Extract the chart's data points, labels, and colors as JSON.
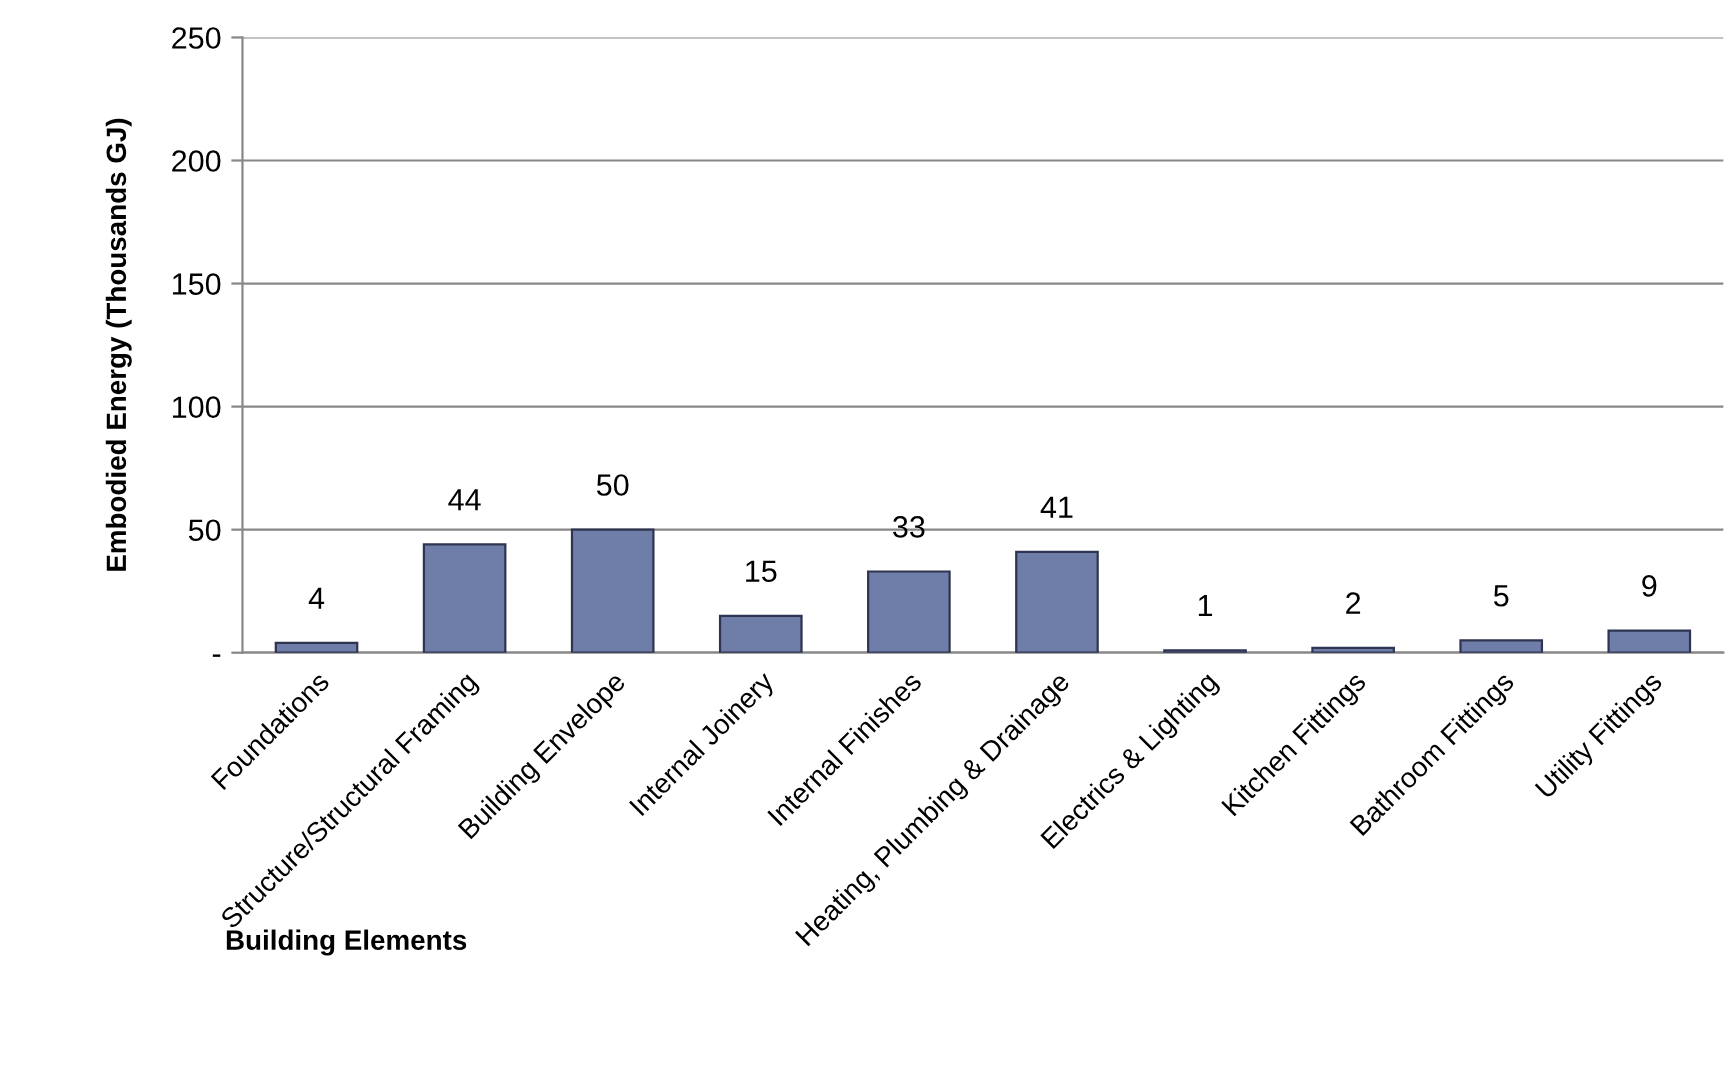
{
  "chart_data": {
    "type": "bar",
    "xlabel": "Building Elements",
    "ylabel": "Embodied Energy (Thousands GJ)",
    "categories": [
      "Foundations",
      "Structure/Structural Framing",
      "Building Envelope",
      "Internal Joinery",
      "Internal Finishes",
      "Heating, Plumbing & Drainage",
      "Electrics & Lighting",
      "Kitchen Fittings",
      "Bathroom Fittings",
      "Utility Fittings"
    ],
    "values": [
      4,
      44,
      50,
      15,
      33,
      41,
      1,
      2,
      5,
      9
    ],
    "color": "#6f7ea8",
    "ylim": [
      0,
      250
    ],
    "yticks": [
      {
        "value": 0,
        "label": "-"
      },
      50,
      100,
      150,
      200,
      250
    ],
    "grid": "y",
    "data_labels": true
  }
}
